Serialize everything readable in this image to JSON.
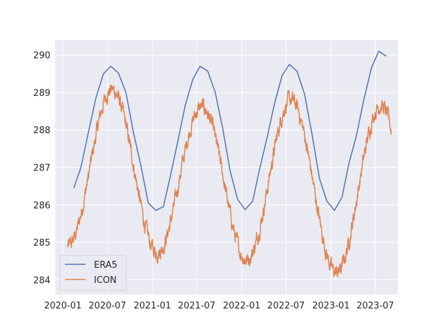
{
  "chart_data": {
    "type": "line",
    "title": "",
    "xlabel": "",
    "ylabel": "",
    "grid": true,
    "legend": "lower-left",
    "x_ticks": [
      "2020-01",
      "2020-07",
      "2021-01",
      "2021-07",
      "2022-01",
      "2022-07",
      "2023-01",
      "2023-07"
    ],
    "y_ticks": [
      284,
      285,
      286,
      287,
      288,
      289,
      290
    ],
    "xlim": [
      "2019-12-01",
      "2023-10-01"
    ],
    "ylim": [
      283.6,
      290.4
    ],
    "series": [
      {
        "name": "ERA5",
        "color": "#4c72b0",
        "style": "monthly",
        "points": [
          [
            "2020-02-15",
            286.45
          ],
          [
            "2020-03-15",
            287.0
          ],
          [
            "2020-04-15",
            287.95
          ],
          [
            "2020-05-15",
            288.85
          ],
          [
            "2020-06-15",
            289.5
          ],
          [
            "2020-07-15",
            289.7
          ],
          [
            "2020-08-15",
            289.52
          ],
          [
            "2020-09-15",
            289.0
          ],
          [
            "2020-10-15",
            287.95
          ],
          [
            "2020-11-15",
            287.05
          ],
          [
            "2020-12-15",
            286.05
          ],
          [
            "2021-01-15",
            285.85
          ],
          [
            "2021-02-15",
            285.95
          ],
          [
            "2021-03-15",
            286.75
          ],
          [
            "2021-04-15",
            287.7
          ],
          [
            "2021-05-15",
            288.65
          ],
          [
            "2021-06-15",
            289.35
          ],
          [
            "2021-07-15",
            289.7
          ],
          [
            "2021-08-15",
            289.57
          ],
          [
            "2021-09-15",
            289.0
          ],
          [
            "2021-10-15",
            288.05
          ],
          [
            "2021-11-15",
            286.9
          ],
          [
            "2021-12-15",
            286.15
          ],
          [
            "2022-01-15",
            285.87
          ],
          [
            "2022-02-15",
            286.1
          ],
          [
            "2022-03-15",
            286.95
          ],
          [
            "2022-04-15",
            287.8
          ],
          [
            "2022-05-15",
            288.7
          ],
          [
            "2022-06-15",
            289.45
          ],
          [
            "2022-07-15",
            289.75
          ],
          [
            "2022-08-15",
            289.57
          ],
          [
            "2022-09-15",
            288.95
          ],
          [
            "2022-10-15",
            287.9
          ],
          [
            "2022-11-15",
            286.7
          ],
          [
            "2022-12-15",
            286.1
          ],
          [
            "2023-01-15",
            285.85
          ],
          [
            "2023-02-15",
            286.2
          ],
          [
            "2023-03-15",
            287.1
          ],
          [
            "2023-04-15",
            287.85
          ],
          [
            "2023-05-15",
            288.8
          ],
          [
            "2023-06-15",
            289.65
          ],
          [
            "2023-07-15",
            290.1
          ],
          [
            "2023-08-15",
            289.97
          ]
        ]
      },
      {
        "name": "ICON",
        "color": "#dd8452",
        "style": "daily",
        "start": "2020-01-20",
        "end": "2023-09-05",
        "cycle": {
          "mean": 286.9,
          "amplitude": 2.1,
          "min_date": "2021-01-20",
          "annual_means": [
            [
              "2020-07-01",
              287.0
            ],
            [
              "2021-07-01",
              286.6
            ],
            [
              "2022-07-01",
              286.65
            ],
            [
              "2023-07-01",
              286.3
            ]
          ],
          "annual_amplitudes": [
            [
              "2020-07-01",
              2.1
            ],
            [
              "2021-07-01",
              2.0
            ],
            [
              "2022-07-01",
              2.15
            ],
            [
              "2023-07-01",
              2.35
            ]
          ]
        },
        "noise": 0.18
      }
    ]
  }
}
